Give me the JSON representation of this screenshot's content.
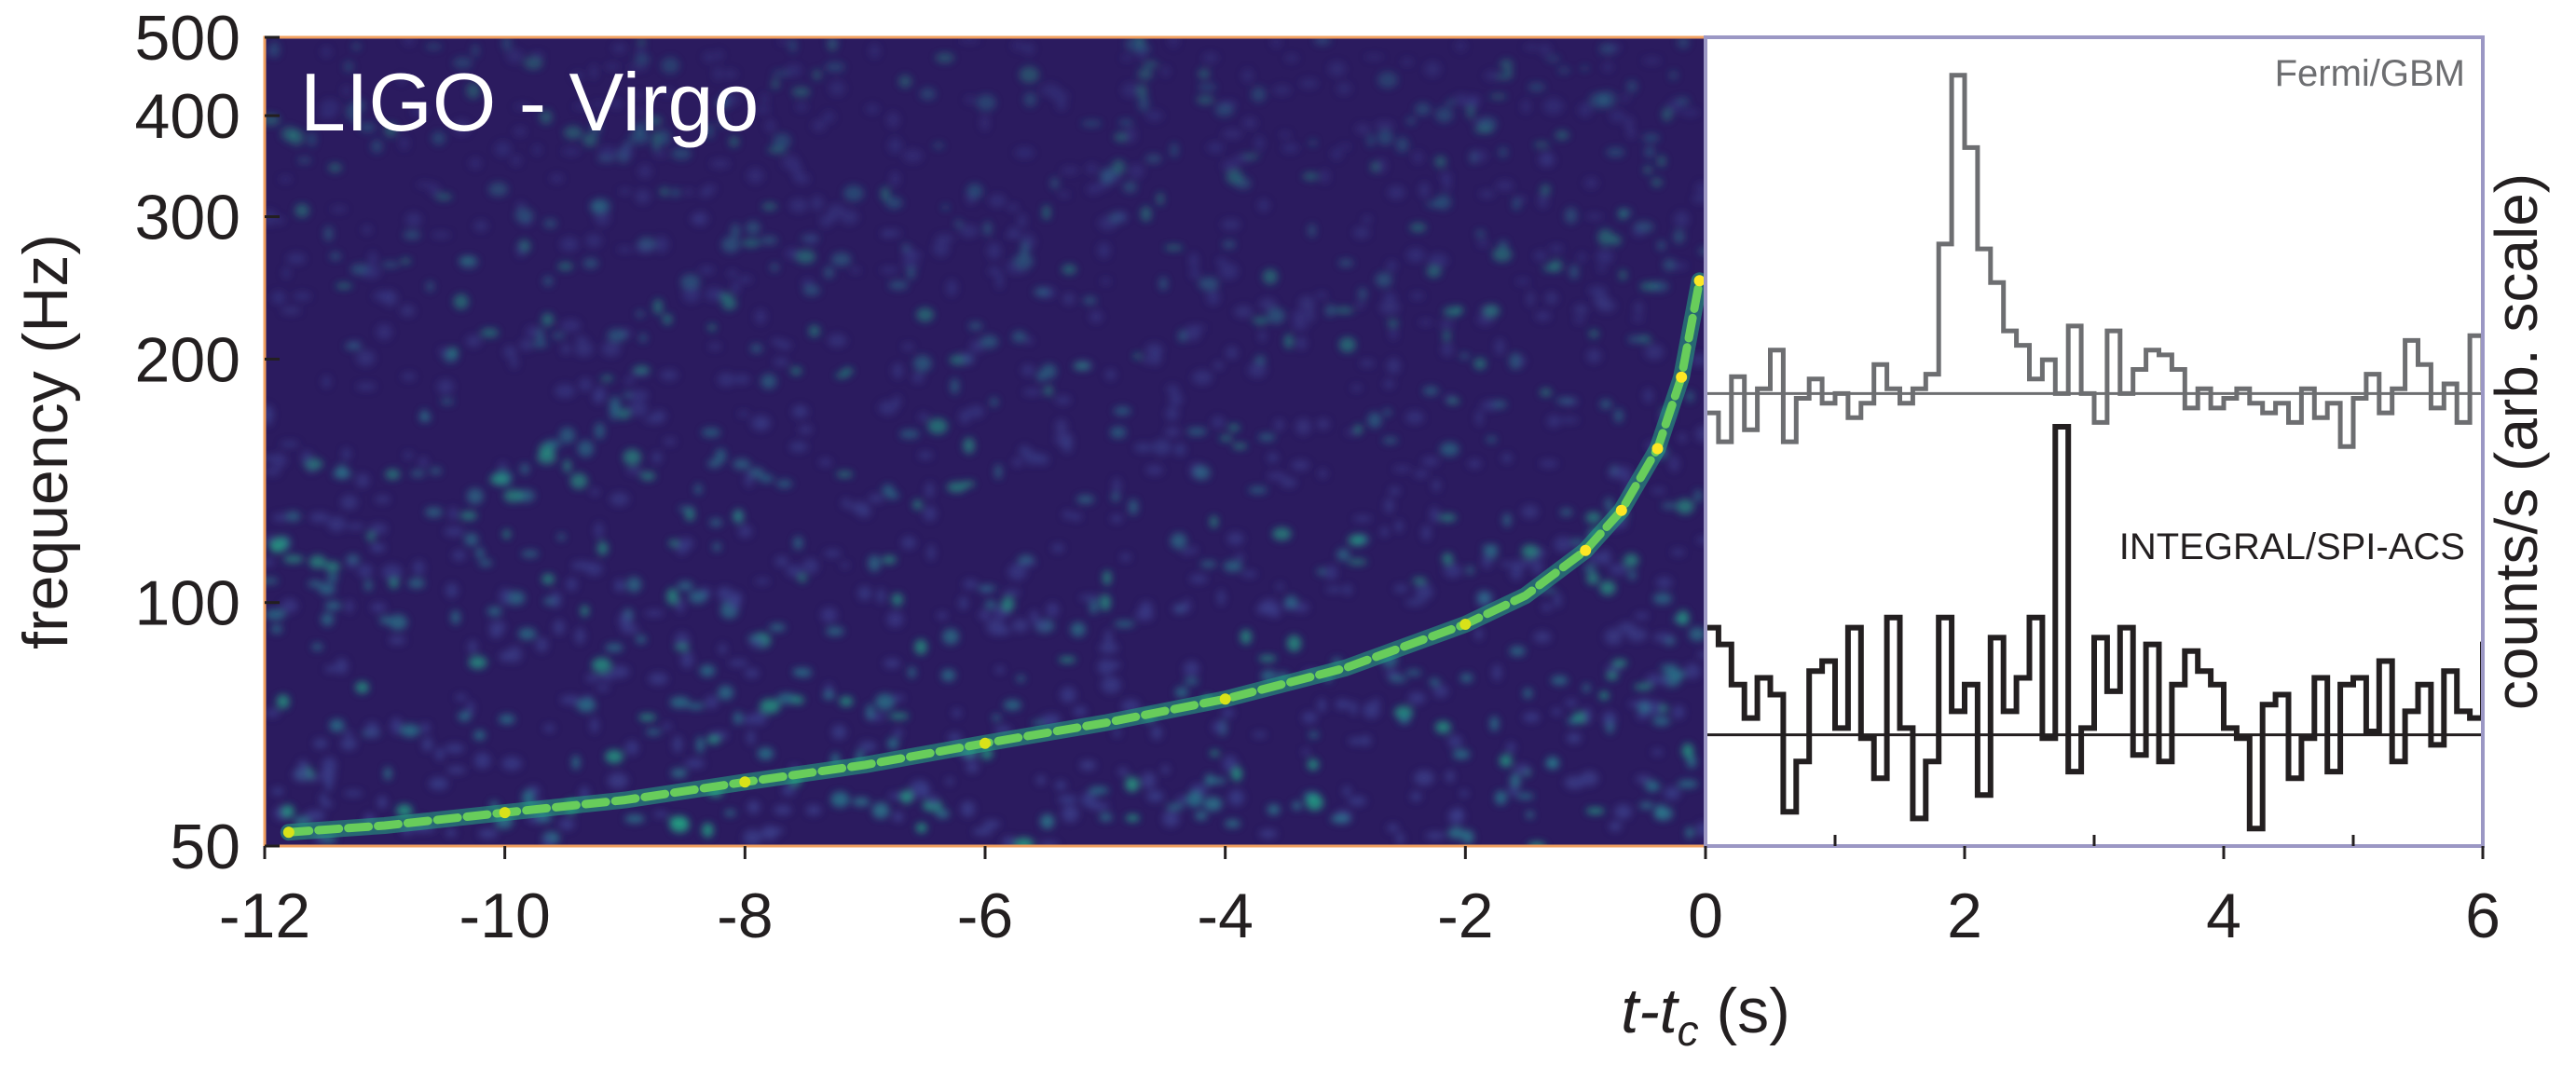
{
  "chart_data": [
    {
      "type": "heatmap",
      "title": "LIGO - Virgo",
      "xlabel": "t-t",
      "xlabel_sub": "c",
      "xlabel_unit": " (s)",
      "ylabel": "frequency (Hz)",
      "yscale": "log",
      "xlim": [
        -12,
        0
      ],
      "ylim": [
        50,
        500
      ],
      "x_ticks": [
        -12,
        -10,
        -8,
        -6,
        -4,
        -2,
        0
      ],
      "y_ticks": [
        50,
        100,
        200,
        300,
        400,
        500
      ],
      "colormap": [
        "#2b1b5f",
        "#3b3f8a",
        "#2a7d8e",
        "#24a584",
        "#68cd5b",
        "#d8e219",
        "#fde725"
      ],
      "chirp_track": {
        "t": [
          -11.8,
          -11,
          -10,
          -9,
          -8,
          -7,
          -6,
          -5,
          -4,
          -3,
          -2,
          -1.5,
          -1,
          -0.7,
          -0.4,
          -0.2,
          -0.05
        ],
        "f": [
          52,
          53,
          55,
          57,
          60,
          63,
          67,
          71,
          76,
          83,
          94,
          102,
          116,
          130,
          155,
          190,
          250
        ]
      }
    },
    {
      "type": "line",
      "x_ticks": [
        2,
        4,
        6
      ],
      "x_shared_ticks": [
        0
      ],
      "xlim": [
        0,
        6
      ],
      "ylabel": "counts/s (arb. scale)",
      "series": [
        {
          "name": "Fermi/GBM",
          "color": "#6d6e71",
          "x_start": 0.05,
          "bin_width": 0.1,
          "values": [
            0.52,
            0.4,
            0.67,
            0.45,
            0.62,
            0.78,
            0.4,
            0.58,
            0.66,
            0.56,
            0.6,
            0.5,
            0.56,
            0.72,
            0.62,
            0.56,
            0.62,
            0.68,
            1.22,
            1.92,
            1.62,
            1.2,
            1.06,
            0.86,
            0.8,
            0.66,
            0.74,
            0.6,
            0.88,
            0.6,
            0.48,
            0.86,
            0.6,
            0.7,
            0.78,
            0.76,
            0.7,
            0.54,
            0.62,
            0.54,
            0.58,
            0.62,
            0.56,
            0.52,
            0.56,
            0.48,
            0.62,
            0.5,
            0.56,
            0.38,
            0.58,
            0.68,
            0.52,
            0.62,
            0.82,
            0.72,
            0.54,
            0.64,
            0.48,
            0.84,
            0.62,
            0.4,
            0.7,
            0.86,
            0.66
          ],
          "baseline": 0.6
        },
        {
          "name": "INTEGRAL/SPI-ACS",
          "color": "#231f20",
          "x_start": 0.05,
          "bin_width": 0.1,
          "values": [
            0.35,
            0.3,
            0.18,
            0.08,
            0.2,
            0.15,
            -0.2,
            -0.05,
            0.22,
            0.25,
            0.05,
            0.35,
            0.02,
            -0.1,
            0.38,
            0.05,
            -0.22,
            -0.05,
            0.38,
            0.1,
            0.18,
            -0.15,
            0.32,
            0.1,
            0.2,
            0.38,
            0.02,
            0.95,
            -0.08,
            0.05,
            0.32,
            0.16,
            0.35,
            -0.03,
            0.3,
            -0.05,
            0.18,
            0.28,
            0.22,
            0.18,
            0.05,
            0.02,
            -0.25,
            0.12,
            0.15,
            -0.1,
            0.02,
            0.2,
            -0.08,
            0.18,
            0.2,
            0.04,
            0.25,
            -0.05,
            0.1,
            0.18,
            0.0,
            0.22,
            0.1,
            0.08,
            0.3,
            -0.12,
            0.06,
            0.3,
            -0.12
          ],
          "baseline": 0.03
        }
      ]
    }
  ]
}
